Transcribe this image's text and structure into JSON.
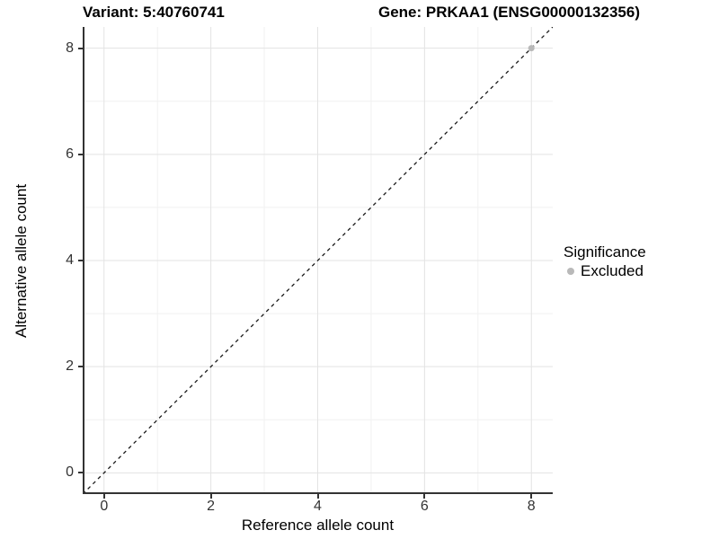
{
  "header": {
    "variant_title": "Variant: 5:40760741",
    "gene_title": "Gene: PRKAA1 (ENSG00000132356)"
  },
  "chart_data": {
    "type": "scatter",
    "title": "Variant: 5:40760741    Gene: PRKAA1 (ENSG00000132356)",
    "xlabel": "Reference allele count",
    "ylabel": "Alternative allele count",
    "xlim": [
      -0.4,
      8.4
    ],
    "ylim": [
      -0.4,
      8.4
    ],
    "xticks": [
      0,
      2,
      4,
      6,
      8
    ],
    "yticks": [
      0,
      2,
      4,
      6,
      8
    ],
    "minor_xticks": [
      1,
      3,
      5,
      7
    ],
    "minor_yticks": [
      1,
      3,
      5,
      7
    ],
    "grid": true,
    "legend_position": "right",
    "reference_line": {
      "type": "identity",
      "style": "dashed",
      "color": "#1a1a1a"
    },
    "series": [
      {
        "name": "Excluded",
        "color": "#b9b9b9",
        "points": [
          {
            "x": 8,
            "y": 8
          }
        ]
      }
    ]
  },
  "legend": {
    "title": "Significance",
    "items": [
      {
        "label": "Excluded",
        "color": "#b9b9b9"
      }
    ]
  },
  "colors": {
    "background": "#ffffff",
    "grid_major": "#e3e3e3",
    "grid_minor": "#f1f1f1",
    "axis_line": "#333333",
    "tick_label": "#333333",
    "title_text": "#000000"
  }
}
